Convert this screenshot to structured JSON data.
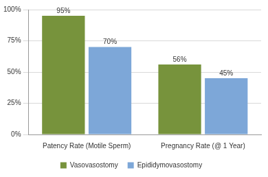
{
  "chart_data": {
    "type": "bar",
    "categories": [
      "Patency Rate (Motile Sperm)",
      "Pregnancy Rate (@ 1 Year)"
    ],
    "series": [
      {
        "name": "Vasovasostomy",
        "color": "#77933c",
        "values": [
          95,
          56
        ],
        "value_labels": [
          "95%",
          "56%"
        ]
      },
      {
        "name": "Epididymovasostomy",
        "color": "#7da7d8",
        "values": [
          70,
          45
        ],
        "value_labels": [
          "70%",
          "45%"
        ]
      }
    ],
    "ylim": [
      0,
      100
    ],
    "yticks": [
      {
        "value": 0,
        "label": "0%"
      },
      {
        "value": 25,
        "label": "25%"
      },
      {
        "value": 50,
        "label": "50%"
      },
      {
        "value": 75,
        "label": "75%"
      },
      {
        "value": 100,
        "label": "100%"
      }
    ],
    "grid": true,
    "legend": "bottom",
    "data_labels": true
  }
}
